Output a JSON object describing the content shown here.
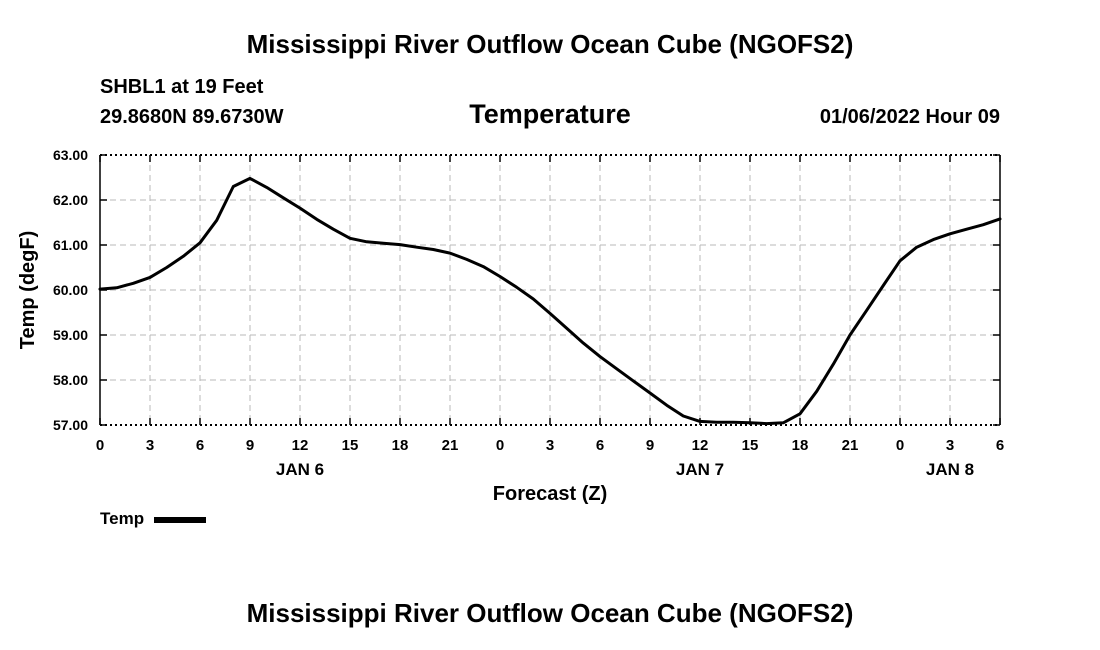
{
  "header": {
    "title": "Mississippi River Outflow Ocean Cube (NGOFS2)",
    "station": "SHBL1 at 19 Feet",
    "coords": "29.8680N  89.6730W",
    "subtitle": "Temperature",
    "datetime": "01/06/2022 Hour 09"
  },
  "footer": {
    "title": "Mississippi River Outflow Ocean Cube (NGOFS2)"
  },
  "chart_data": {
    "type": "line",
    "title": "Temperature",
    "xlabel": "Forecast (Z)",
    "ylabel": "Temp (degF)",
    "xlim": [
      0,
      54
    ],
    "ylim": [
      57.0,
      63.0
    ],
    "yticks": [
      57.0,
      58.0,
      59.0,
      60.0,
      61.0,
      62.0,
      63.0
    ],
    "ytick_labels": [
      "57.00",
      "58.00",
      "59.00",
      "60.00",
      "61.00",
      "62.00",
      "63.00"
    ],
    "xticks": [
      0,
      3,
      6,
      9,
      12,
      15,
      18,
      21,
      24,
      27,
      30,
      33,
      36,
      39,
      42,
      45,
      48,
      51,
      54
    ],
    "xtick_labels": [
      "0",
      "3",
      "6",
      "9",
      "12",
      "15",
      "18",
      "21",
      "0",
      "3",
      "6",
      "9",
      "12",
      "15",
      "18",
      "21",
      "0",
      "3",
      "6"
    ],
    "day_labels": [
      {
        "x": 12,
        "label": "JAN 6"
      },
      {
        "x": 36,
        "label": "JAN 7"
      },
      {
        "x": 51,
        "label": "JAN 8"
      }
    ],
    "grid": true,
    "legend_position": "bottom-left",
    "series": [
      {
        "name": "Temp",
        "color": "#000000",
        "x": [
          0,
          1,
          2,
          3,
          4,
          5,
          6,
          7,
          8,
          9,
          10,
          11,
          12,
          13,
          14,
          15,
          16,
          17,
          18,
          19,
          20,
          21,
          22,
          23,
          24,
          25,
          26,
          27,
          28,
          29,
          30,
          31,
          32,
          33,
          34,
          35,
          36,
          37,
          38,
          39,
          40,
          41,
          42,
          43,
          44,
          45,
          46,
          47,
          48,
          49,
          50,
          51,
          52,
          53,
          54
        ],
        "values": [
          60.02,
          60.05,
          60.15,
          60.28,
          60.5,
          60.75,
          61.05,
          61.55,
          62.3,
          62.48,
          62.28,
          62.05,
          61.82,
          61.57,
          61.35,
          61.15,
          61.07,
          61.04,
          61.01,
          60.95,
          60.9,
          60.82,
          60.68,
          60.52,
          60.3,
          60.06,
          59.8,
          59.48,
          59.15,
          58.82,
          58.52,
          58.25,
          57.98,
          57.71,
          57.44,
          57.2,
          57.08,
          57.06,
          57.06,
          57.05,
          57.03,
          57.05,
          57.25,
          57.75,
          58.35,
          59.0,
          59.55,
          60.1,
          60.65,
          60.95,
          61.12,
          61.25,
          61.35,
          61.45,
          61.58
        ]
      }
    ]
  }
}
